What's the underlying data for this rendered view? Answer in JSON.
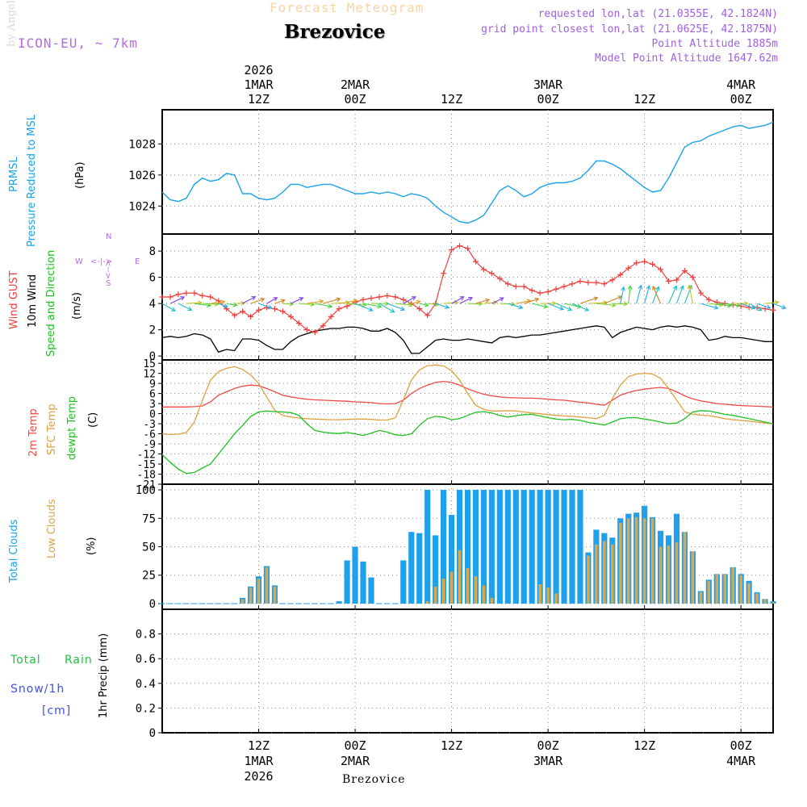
{
  "header": {
    "forecast_title": "Forecast Meteogram",
    "station": "Brezovice",
    "model": "ICON-EU, ~ 7km",
    "requested": "requested lon,lat (21.0355E, 42.1824N)",
    "grid_point": "grid point closest lon,lat (21.0625E, 42.1875N)",
    "point_altitude": "Point Altitude 1885m",
    "model_altitude": "Model Point Altitude 1647.62m"
  },
  "footer": {
    "station": "Brezovice",
    "watermark": "by Angel"
  },
  "time_axis": {
    "top_labels": [
      {
        "hour": 12,
        "lines": [
          "2026",
          "1MAR",
          "12Z"
        ]
      },
      {
        "hour": 24,
        "lines": [
          "2MAR",
          "00Z"
        ]
      },
      {
        "hour": 36,
        "lines": [
          "12Z"
        ]
      },
      {
        "hour": 48,
        "lines": [
          "3MAR",
          "00Z"
        ]
      },
      {
        "hour": 60,
        "lines": [
          "12Z"
        ]
      },
      {
        "hour": 72,
        "lines": [
          "4MAR",
          "00Z"
        ]
      }
    ],
    "bottom_labels": [
      {
        "hour": 12,
        "lines": [
          "12Z",
          "1MAR",
          "2026"
        ]
      },
      {
        "hour": 24,
        "lines": [
          "00Z",
          "2MAR"
        ]
      },
      {
        "hour": 36,
        "lines": [
          "12Z"
        ]
      },
      {
        "hour": 48,
        "lines": [
          "00Z",
          "3MAR"
        ]
      },
      {
        "hour": 60,
        "lines": [
          "12Z"
        ]
      },
      {
        "hour": 72,
        "lines": [
          "00Z",
          "4MAR"
        ]
      }
    ]
  },
  "legends": {
    "pressure": {
      "line1": "PRMSL",
      "line2": "Pressure Reduced to MSL",
      "unit": "(hPa)"
    },
    "wind": {
      "gust": "Wind GUST",
      "wind10": "10m Wind",
      "speed_dir": "Speed and Direction",
      "unit": "(m/s)",
      "compass_n": "N",
      "compass_s": "S",
      "compass_w": "W",
      "compass_e": "E",
      "compass_ns": "<-->",
      "compass_we": "<-|->"
    },
    "temp": {
      "t2m": "2m Temp",
      "sfc": "SFC Temp",
      "dew": "dewpt Temp",
      "unit": "(C)"
    },
    "clouds": {
      "total": "Total Clouds",
      "low": "Low Clouds",
      "unit": "(%)"
    },
    "precip": {
      "total": "Total",
      "rain": "Rain",
      "snow": "Snow/1h",
      "cm": "[cm]",
      "ylabel": "1hr Precip (mm)"
    }
  },
  "colors": {
    "pressure": "#1aa3e8",
    "gust": "#f04040",
    "wind10": "#000000",
    "t2m": "#f04848",
    "sfc": "#e0a040",
    "dew": "#20c020",
    "total_clouds": "#1ea0ec",
    "low_clouds": "#d9a84a",
    "rain": "#20c040",
    "snow": "#4050e8"
  },
  "chart_data": [
    {
      "type": "line",
      "name": "pressure",
      "title": "PRMSL Pressure Reduced to MSL",
      "ylabel": "(hPa)",
      "ylim": [
        1022.2,
        1030.2
      ],
      "yticks": [
        1024,
        1026,
        1028
      ],
      "x": [
        0,
        1,
        2,
        3,
        4,
        5,
        6,
        7,
        8,
        9,
        10,
        11,
        12,
        13,
        14,
        15,
        16,
        17,
        18,
        19,
        20,
        21,
        22,
        23,
        24,
        25,
        26,
        27,
        28,
        29,
        30,
        31,
        32,
        33,
        34,
        35,
        36,
        37,
        38,
        39,
        40,
        41,
        42,
        43,
        44,
        45,
        46,
        47,
        48,
        49,
        50,
        51,
        52,
        53,
        54,
        55,
        56,
        57,
        58,
        59,
        60,
        61,
        62,
        63,
        64,
        65,
        66,
        67,
        68,
        69,
        70,
        71,
        72,
        73,
        74,
        75,
        76
      ],
      "values": [
        1024.9,
        1024.4,
        1024.3,
        1024.5,
        1025.4,
        1025.8,
        1025.6,
        1025.7,
        1026.1,
        1026.0,
        1024.8,
        1024.8,
        1024.5,
        1024.4,
        1024.5,
        1024.9,
        1025.4,
        1025.4,
        1025.2,
        1025.3,
        1025.4,
        1025.4,
        1025.2,
        1025.0,
        1024.8,
        1024.8,
        1024.9,
        1024.8,
        1024.9,
        1024.8,
        1024.6,
        1024.8,
        1024.7,
        1024.5,
        1024.0,
        1023.6,
        1023.3,
        1023.0,
        1022.9,
        1023.1,
        1023.4,
        1024.2,
        1025.0,
        1025.3,
        1025.0,
        1024.6,
        1024.8,
        1025.2,
        1025.4,
        1025.5,
        1025.5,
        1025.6,
        1025.8,
        1026.3,
        1026.9,
        1026.9,
        1026.7,
        1026.4,
        1026.0,
        1025.6,
        1025.2,
        1024.9,
        1025.0,
        1025.8,
        1026.8,
        1027.8,
        1028.1,
        1028.2,
        1028.5,
        1028.7,
        1028.9,
        1029.1,
        1029.2,
        1029.0,
        1029.1,
        1029.2,
        1029.4
      ]
    },
    {
      "type": "line",
      "name": "wind",
      "title": "Wind GUST / 10m Wind Speed and Direction",
      "ylabel": "(m/s)",
      "ylim": [
        -0.3,
        9.3
      ],
      "yticks": [
        0,
        2,
        4,
        6,
        8
      ],
      "x": [
        0,
        1,
        2,
        3,
        4,
        5,
        6,
        7,
        8,
        9,
        10,
        11,
        12,
        13,
        14,
        15,
        16,
        17,
        18,
        19,
        20,
        21,
        22,
        23,
        24,
        25,
        26,
        27,
        28,
        29,
        30,
        31,
        32,
        33,
        34,
        35,
        36,
        37,
        38,
        39,
        40,
        41,
        42,
        43,
        44,
        45,
        46,
        47,
        48,
        49,
        50,
        51,
        52,
        53,
        54,
        55,
        56,
        57,
        58,
        59,
        60,
        61,
        62,
        63,
        64,
        65,
        66,
        67,
        68,
        69,
        70,
        71,
        72,
        73,
        74,
        75,
        76
      ],
      "series": [
        {
          "name": "Wind GUST",
          "values": [
            4.5,
            4.5,
            4.7,
            4.8,
            4.8,
            4.6,
            4.5,
            4.2,
            3.6,
            3.1,
            3.4,
            3.0,
            3.5,
            3.7,
            3.6,
            3.4,
            3.0,
            2.5,
            2.0,
            1.8,
            2.3,
            3.0,
            3.6,
            3.8,
            4.1,
            4.3,
            4.4,
            4.5,
            4.6,
            4.5,
            4.3,
            4.0,
            3.6,
            3.1,
            4.0,
            6.3,
            8.1,
            8.4,
            8.2,
            7.2,
            6.6,
            6.3,
            5.9,
            5.5,
            5.3,
            5.3,
            5.0,
            4.8,
            4.9,
            5.1,
            5.3,
            5.5,
            5.7,
            5.6,
            5.6,
            5.5,
            5.8,
            6.2,
            6.7,
            7.1,
            7.2,
            7.0,
            6.6,
            5.7,
            5.8,
            6.5,
            6.0,
            4.8,
            4.3,
            4.1,
            4.0,
            3.9,
            3.8,
            3.7,
            3.7,
            3.6,
            3.5
          ]
        },
        {
          "name": "10m Wind",
          "values": [
            1.4,
            1.5,
            1.4,
            1.5,
            1.7,
            1.6,
            1.3,
            0.3,
            0.5,
            0.4,
            1.3,
            1.3,
            1.2,
            0.8,
            0.5,
            0.5,
            1.1,
            1.5,
            1.7,
            1.9,
            2.0,
            2.1,
            2.1,
            2.2,
            2.2,
            2.1,
            1.9,
            1.9,
            2.1,
            1.8,
            1.2,
            0.2,
            0.2,
            0.7,
            1.2,
            1.3,
            1.2,
            1.2,
            1.3,
            1.2,
            1.1,
            1.0,
            1.4,
            1.5,
            1.4,
            1.5,
            1.6,
            1.6,
            1.7,
            1.8,
            1.9,
            2.0,
            2.1,
            2.2,
            2.3,
            2.2,
            1.4,
            1.8,
            2.0,
            2.2,
            2.1,
            2.0,
            2.2,
            2.3,
            2.2,
            2.3,
            2.2,
            2.0,
            1.2,
            1.3,
            1.5,
            1.4,
            1.4,
            1.3,
            1.2,
            1.1,
            1.1
          ]
        }
      ],
      "vectors_note": "10m wind arrows plotted along ~4 m/s"
    },
    {
      "type": "line",
      "name": "temperature",
      "title": "2m Temp / SFC Temp / dewpt Temp",
      "ylabel": "(C)",
      "ylim": [
        -21,
        16
      ],
      "yticks": [
        15,
        12,
        9,
        6,
        3,
        0,
        -3,
        -6,
        -9,
        -12,
        -15,
        -18,
        -21
      ],
      "x": [
        0,
        1,
        2,
        3,
        4,
        5,
        6,
        7,
        8,
        9,
        10,
        11,
        12,
        13,
        14,
        15,
        16,
        17,
        18,
        19,
        20,
        21,
        22,
        23,
        24,
        25,
        26,
        27,
        28,
        29,
        30,
        31,
        32,
        33,
        34,
        35,
        36,
        37,
        38,
        39,
        40,
        41,
        42,
        43,
        44,
        45,
        46,
        47,
        48,
        49,
        50,
        51,
        52,
        53,
        54,
        55,
        56,
        57,
        58,
        59,
        60,
        61,
        62,
        63,
        64,
        65,
        66,
        67,
        68,
        69,
        70,
        71,
        72,
        73,
        74,
        75,
        76
      ],
      "series": [
        {
          "name": "2m Temp",
          "values": [
            2.0,
            2.0,
            2.0,
            2.0,
            2.1,
            2.3,
            3.5,
            5.5,
            6.5,
            7.5,
            8.2,
            8.5,
            8.3,
            7.5,
            6.5,
            5.5,
            5.0,
            4.6,
            4.3,
            4.1,
            4.0,
            3.9,
            3.8,
            3.7,
            3.5,
            3.4,
            3.3,
            3.0,
            2.9,
            3.0,
            4.0,
            6.0,
            7.5,
            8.5,
            9.3,
            9.6,
            9.3,
            8.5,
            7.4,
            6.5,
            5.8,
            5.3,
            5.0,
            4.8,
            4.7,
            4.6,
            4.6,
            4.5,
            4.3,
            4.1,
            4.0,
            3.7,
            3.4,
            3.2,
            2.8,
            2.5,
            4.0,
            5.5,
            6.3,
            6.9,
            7.3,
            7.6,
            7.8,
            7.5,
            6.5,
            5.3,
            4.4,
            3.8,
            3.4,
            3.0,
            2.8,
            2.6,
            2.4,
            2.3,
            2.2,
            2.1,
            2.0
          ]
        },
        {
          "name": "SFC Temp",
          "values": [
            -6.0,
            -6.2,
            -6.1,
            -5.6,
            -2.5,
            4.0,
            10.0,
            12.5,
            13.5,
            14.0,
            13.2,
            11.5,
            9.0,
            5.0,
            1.0,
            -0.5,
            -1.0,
            -1.3,
            -1.5,
            -1.6,
            -1.7,
            -1.8,
            -1.8,
            -1.7,
            -1.6,
            -1.6,
            -1.7,
            -1.9,
            -1.9,
            -1.2,
            4.0,
            10.0,
            13.0,
            14.3,
            14.5,
            14.2,
            12.8,
            10.0,
            6.0,
            2.5,
            1.3,
            0.8,
            0.8,
            0.9,
            0.8,
            0.5,
            0.2,
            0.0,
            -0.3,
            -0.5,
            -0.7,
            -0.8,
            -1.0,
            -1.2,
            -1.5,
            -0.5,
            4.5,
            8.5,
            11.0,
            11.8,
            12.0,
            11.8,
            10.5,
            7.5,
            4.0,
            0.6,
            -0.2,
            -0.4,
            -0.6,
            -1.0,
            -1.5,
            -1.8,
            -2.0,
            -2.2,
            -2.5,
            -2.8,
            -3.0
          ]
        },
        {
          "name": "dewpt Temp",
          "values": [
            -12.2,
            -14.5,
            -16.5,
            -17.8,
            -17.5,
            -16.2,
            -15.0,
            -12.0,
            -9.0,
            -6.0,
            -3.5,
            -0.8,
            0.5,
            0.8,
            0.6,
            0.5,
            0.3,
            -0.5,
            -3.0,
            -5.0,
            -5.5,
            -5.8,
            -5.9,
            -5.6,
            -6.0,
            -6.5,
            -5.8,
            -5.0,
            -5.5,
            -6.3,
            -6.5,
            -6.0,
            -3.5,
            -1.5,
            -0.8,
            -1.0,
            -1.8,
            -1.5,
            -0.5,
            0.4,
            0.6,
            0.2,
            -0.5,
            -1.0,
            -0.6,
            -0.3,
            -0.2,
            -0.7,
            -1.2,
            -1.6,
            -1.8,
            -1.7,
            -2.0,
            -2.6,
            -3.0,
            -3.4,
            -2.5,
            -1.5,
            -1.2,
            -1.2,
            -1.6,
            -2.0,
            -2.5,
            -3.0,
            -2.8,
            -1.5,
            0.5,
            0.9,
            0.8,
            0.3,
            -0.2,
            -0.5,
            -1.0,
            -1.5,
            -2.0,
            -2.5,
            -3.0
          ]
        }
      ]
    },
    {
      "type": "bar",
      "name": "clouds",
      "title": "Total Clouds / Low Clouds",
      "ylabel": "(%)",
      "ylim": [
        -5,
        105
      ],
      "yticks": [
        0,
        25,
        50,
        75,
        100
      ],
      "x": [
        0,
        1,
        2,
        3,
        4,
        5,
        6,
        7,
        8,
        9,
        10,
        11,
        12,
        13,
        14,
        15,
        16,
        17,
        18,
        19,
        20,
        21,
        22,
        23,
        24,
        25,
        26,
        27,
        28,
        29,
        30,
        31,
        32,
        33,
        34,
        35,
        36,
        37,
        38,
        39,
        40,
        41,
        42,
        43,
        44,
        45,
        46,
        47,
        48,
        49,
        50,
        51,
        52,
        53,
        54,
        55,
        56,
        57,
        58,
        59,
        60,
        61,
        62,
        63,
        64,
        65,
        66,
        67,
        68,
        69,
        70,
        71,
        72,
        73,
        74,
        75,
        76
      ],
      "series": [
        {
          "name": "Total Clouds",
          "values": [
            0,
            0,
            0,
            0,
            0,
            0,
            0,
            0,
            0,
            0,
            5,
            15,
            24,
            33,
            16,
            0,
            0,
            0,
            0,
            0,
            0,
            0,
            2,
            38,
            50,
            37,
            23,
            0,
            0,
            0,
            38,
            63,
            62,
            100,
            60,
            100,
            78,
            100,
            100,
            100,
            100,
            100,
            100,
            100,
            100,
            100,
            100,
            100,
            100,
            100,
            100,
            100,
            100,
            45,
            65,
            62,
            58,
            75,
            79,
            80,
            86,
            76,
            64,
            60,
            79,
            63,
            46,
            11,
            21,
            26,
            26,
            32,
            26,
            20,
            10,
            4,
            2
          ]
        },
        {
          "name": "Low Clouds",
          "values": [
            0,
            0,
            0,
            0,
            0,
            0,
            0,
            0,
            0,
            0,
            4,
            14,
            22,
            32,
            15,
            0,
            0,
            0,
            0,
            0,
            0,
            0,
            0,
            0,
            0,
            0,
            0,
            0,
            0,
            0,
            0,
            0,
            0,
            2,
            15,
            22,
            28,
            47,
            31,
            24,
            16,
            5,
            0,
            0,
            0,
            0,
            0,
            17,
            14,
            9,
            0,
            0,
            0,
            42,
            52,
            55,
            52,
            71,
            75,
            76,
            75,
            75,
            50,
            51,
            54,
            63,
            46,
            10,
            20,
            26,
            26,
            32,
            25,
            18,
            9,
            4,
            1
          ]
        }
      ]
    },
    {
      "type": "bar",
      "name": "precipitation",
      "title": "1hr Precip",
      "ylabel": "1hr Precip (mm)",
      "ylim": [
        0,
        1.0
      ],
      "yticks": [
        0,
        0.2,
        0.4,
        0.6,
        0.8
      ],
      "x": [
        0,
        76
      ],
      "series": [
        {
          "name": "Total Rain",
          "values": [
            0,
            0
          ]
        },
        {
          "name": "Snow/1h",
          "values": [
            0,
            0
          ]
        }
      ]
    }
  ]
}
